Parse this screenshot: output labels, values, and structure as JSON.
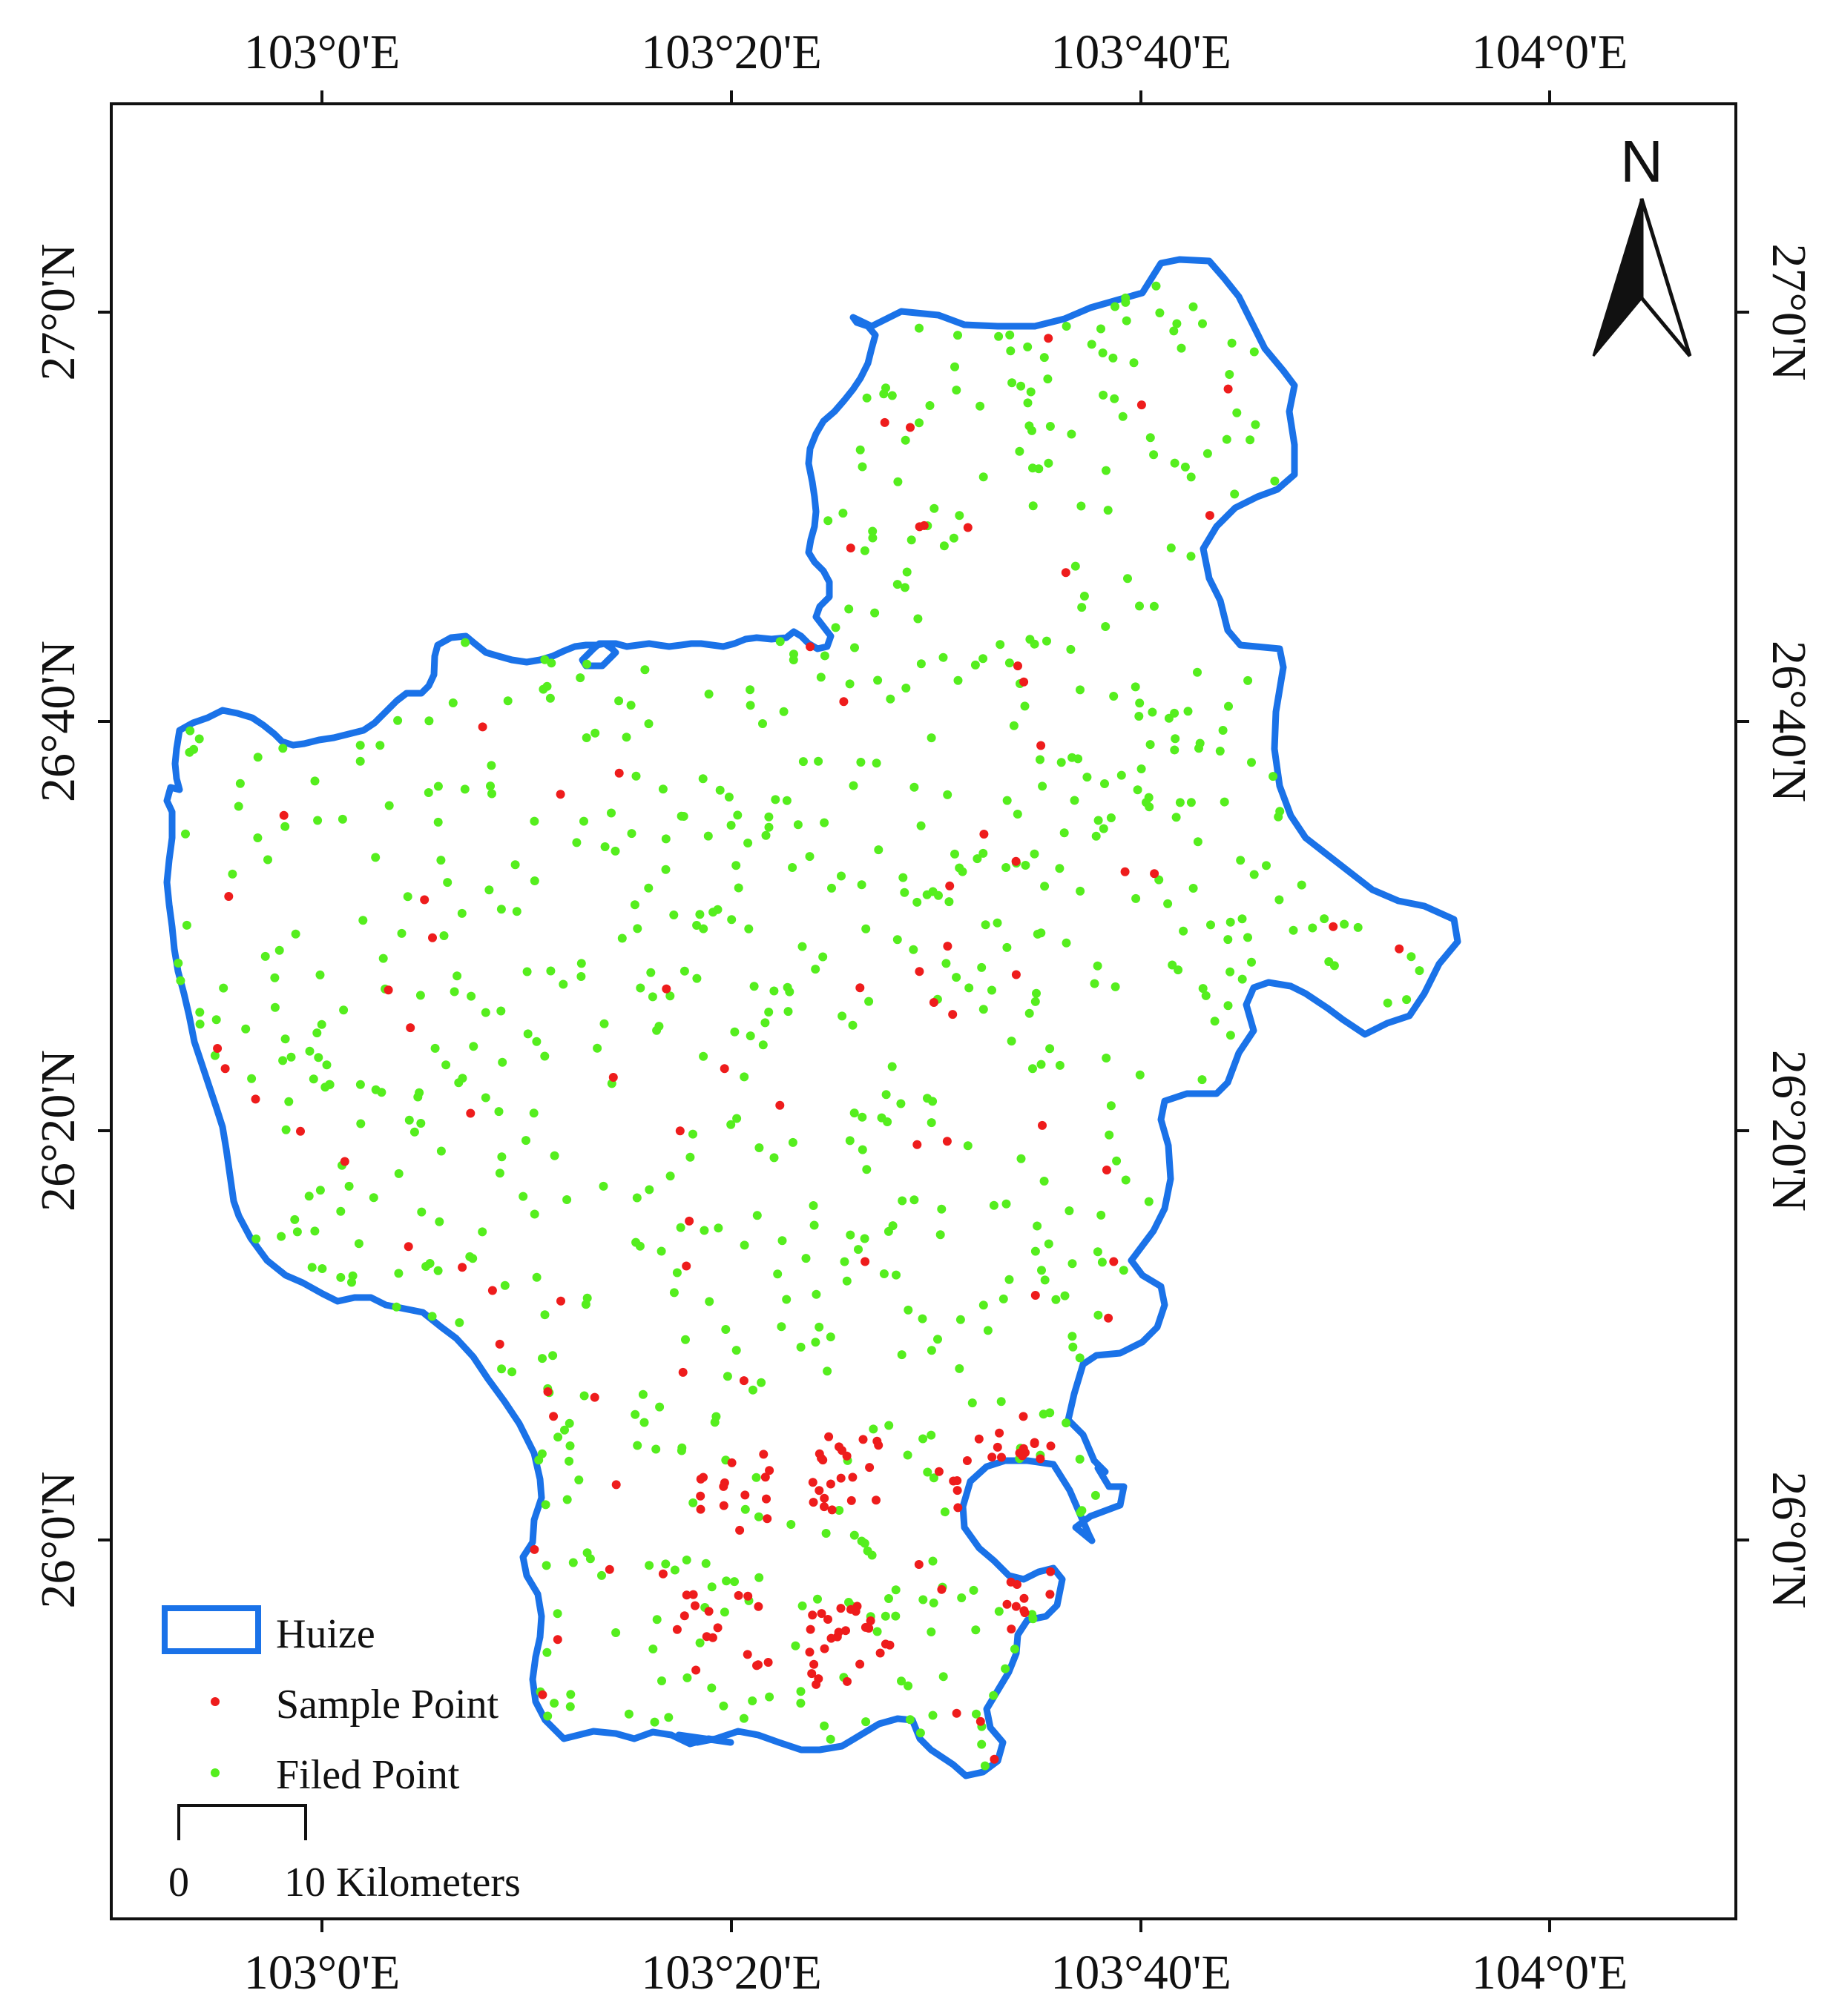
{
  "map": {
    "lon_ticks": [
      "103°0'E",
      "103°20'E",
      "103°40'E",
      "104°0'E"
    ],
    "lat_ticks": [
      "27°0'N",
      "26°40'N",
      "26°20'N",
      "26°0'N"
    ],
    "north_label": "N",
    "legend": {
      "boundary_label": "Huize",
      "sample_label": "Sample Point",
      "field_label": "Filed Point"
    },
    "scale_bar": {
      "zero": "0",
      "end": "10 Kilometers"
    },
    "colors": {
      "boundary": "#1a72e8",
      "sample_point": "#ee1c1c",
      "field_point": "#55ee1e",
      "frame": "#111111"
    },
    "region": "Huize"
  }
}
